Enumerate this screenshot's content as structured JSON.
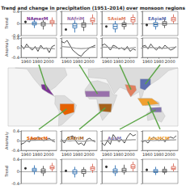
{
  "title": "Trend and change in precipitation (1951–2014) over monsoon regions",
  "chart_data": [
    {
      "type": "boxplot",
      "title": "NAmerM",
      "color": "#7b3294",
      "ylabel": "Trend",
      "tick_labels": "y",
      "categories": [
        null,
        null,
        null,
        null
      ],
      "ylim": [
        -0.4,
        0.4
      ],
      "yticks": [
        -0.4,
        0,
        0.4
      ],
      "series": [
        {
          "type": "scatter",
          "color": "#000000",
          "values": [
            0.05,
            null,
            null,
            null
          ]
        },
        {
          "type": "boxplot",
          "colors": [
            null,
            "#2166ac",
            "#444444",
            "#d6604d"
          ],
          "values": [
            null,
            [
              -0.15,
              -0.05,
              0.0,
              0.05,
              0.15
            ],
            [
              -0.2,
              -0.08,
              -0.02,
              0.04,
              0.12
            ],
            [
              -0.1,
              0.0,
              0.05,
              0.1,
              0.2
            ]
          ]
        }
      ]
    },
    {
      "type": "boxplot",
      "title": "NAfriM",
      "color": "#9970ab",
      "tick_labels": false,
      "categories": [
        null,
        null,
        null,
        null
      ],
      "ylim": [
        -0.4,
        0.4
      ],
      "yticks": [
        -0.4,
        0,
        0.4
      ],
      "series": [
        {
          "type": "scatter",
          "color": "#000000",
          "values": [
            -0.2,
            null,
            null,
            null
          ]
        },
        {
          "type": "boxplot",
          "colors": [
            null,
            "#2166ac",
            "#444444",
            "#d6604d"
          ],
          "values": [
            null,
            [
              -0.3,
              -0.15,
              -0.08,
              0.0,
              0.1
            ],
            [
              -0.25,
              -0.12,
              -0.05,
              0.02,
              0.12
            ],
            [
              -0.05,
              0.05,
              0.1,
              0.18,
              0.3
            ]
          ]
        }
      ]
    },
    {
      "type": "boxplot",
      "title": "SAsiaM",
      "color": "#e08060",
      "tick_labels": false,
      "categories": [
        null,
        null,
        null,
        null
      ],
      "ylim": [
        -0.4,
        0.4
      ],
      "yticks": [
        -0.4,
        0,
        0.4
      ],
      "series": [
        {
          "type": "scatter",
          "color": "#000000",
          "values": [
            -0.1,
            null,
            null,
            null
          ]
        },
        {
          "type": "boxplot",
          "colors": [
            null,
            "#2166ac",
            "#444444",
            "#d6604d"
          ],
          "values": [
            null,
            [
              -0.3,
              -0.18,
              -0.1,
              -0.02,
              0.08
            ],
            [
              -0.2,
              -0.1,
              -0.04,
              0.02,
              0.1
            ],
            [
              -0.05,
              0.05,
              0.12,
              0.2,
              0.3
            ]
          ]
        }
      ]
    },
    {
      "type": "boxplot",
      "title": "EAsiaM",
      "color": "#5e6fb0",
      "tick_labels": false,
      "categories": [
        null,
        null,
        null,
        null
      ],
      "ylim": [
        -0.4,
        0.4
      ],
      "yticks": [
        -0.4,
        0,
        0.4
      ],
      "series": [
        {
          "type": "scatter",
          "color": "#000000",
          "values": [
            -0.05,
            null,
            null,
            null
          ]
        },
        {
          "type": "boxplot",
          "colors": [
            null,
            "#2166ac",
            "#444444",
            "#d6604d"
          ],
          "values": [
            null,
            [
              -0.2,
              -0.1,
              -0.04,
              0.03,
              0.12
            ],
            [
              -0.15,
              -0.06,
              0.0,
              0.06,
              0.15
            ],
            [
              0.0,
              0.08,
              0.14,
              0.2,
              0.3
            ]
          ]
        }
      ]
    },
    {
      "type": "line",
      "ylabel": "Anomaly",
      "tick_labels": true,
      "x": [
        1951,
        1956,
        1961,
        1966,
        1971,
        1976,
        1981,
        1986,
        1991,
        1996,
        2001,
        2006,
        2011
      ],
      "xlim": [
        1951,
        2014
      ],
      "xticks": [
        1960,
        1980,
        2000
      ],
      "ylim": [
        -0.4,
        0.4
      ],
      "yticks": [
        -0.4,
        0,
        0.4
      ],
      "series": [
        {
          "color": "#000000",
          "values": [
            0.1,
            -0.05,
            0.15,
            0.0,
            -0.1,
            0.05,
            -0.15,
            0.1,
            -0.05,
            0.0,
            -0.2,
            0.05,
            0.1
          ]
        },
        {
          "color": "#999999",
          "values": [
            0.02,
            0.0,
            0.03,
            0.01,
            -0.02,
            0.0,
            -0.01,
            0.0,
            -0.03,
            -0.02,
            -0.04,
            -0.03,
            -0.05
          ]
        }
      ]
    },
    {
      "type": "line",
      "tick_labels": "x",
      "x": [
        1951,
        1956,
        1961,
        1966,
        1971,
        1976,
        1981,
        1986,
        1991,
        1996,
        2001,
        2006,
        2011
      ],
      "xlim": [
        1951,
        2014
      ],
      "xticks": [
        1960,
        1980,
        2000
      ],
      "ylim": [
        -0.4,
        0.4
      ],
      "yticks": [
        -0.4,
        0,
        0.4
      ],
      "series": [
        {
          "color": "#000000",
          "values": [
            0.25,
            0.2,
            0.3,
            0.1,
            -0.1,
            -0.2,
            -0.3,
            -0.35,
            -0.2,
            -0.1,
            0.0,
            0.05,
            0.1
          ]
        },
        {
          "color": "#999999",
          "values": [
            0.05,
            0.04,
            0.03,
            0.02,
            0.0,
            -0.02,
            -0.03,
            -0.04,
            -0.03,
            -0.02,
            0.0,
            0.01,
            0.02
          ]
        }
      ]
    },
    {
      "type": "line",
      "tick_labels": "x",
      "x": [
        1951,
        1956,
        1961,
        1966,
        1971,
        1976,
        1981,
        1986,
        1991,
        1996,
        2001,
        2006,
        2011
      ],
      "xlim": [
        1951,
        2014
      ],
      "xticks": [
        1960,
        1980,
        2000
      ],
      "ylim": [
        -0.4,
        0.4
      ],
      "yticks": [
        -0.4,
        0,
        0.4
      ],
      "series": [
        {
          "color": "#000000",
          "values": [
            0.1,
            0.15,
            0.05,
            -0.1,
            0.1,
            0.05,
            -0.05,
            0.0,
            -0.1,
            0.05,
            -0.15,
            -0.05,
            -0.1
          ]
        },
        {
          "color": "#999999",
          "values": [
            0.03,
            0.02,
            0.02,
            0.0,
            0.01,
            -0.01,
            -0.02,
            -0.02,
            -0.03,
            -0.03,
            -0.02,
            0.0,
            0.01
          ]
        }
      ]
    },
    {
      "type": "line",
      "tick_labels": "x",
      "x": [
        1951,
        1956,
        1961,
        1966,
        1971,
        1976,
        1981,
        1986,
        1991,
        1996,
        2001,
        2006,
        2011
      ],
      "xlim": [
        1951,
        2014
      ],
      "xticks": [
        1960,
        1980,
        2000
      ],
      "ylim": [
        -0.4,
        0.4
      ],
      "yticks": [
        -0.4,
        0,
        0.4
      ],
      "series": [
        {
          "color": "#000000",
          "values": [
            0.05,
            0.1,
            -0.05,
            0.15,
            0.0,
            -0.1,
            0.05,
            -0.05,
            0.1,
            0.0,
            -0.1,
            -0.05,
            0.05
          ]
        },
        {
          "color": "#999999",
          "values": [
            0.01,
            0.02,
            0.0,
            0.01,
            0.0,
            -0.01,
            -0.02,
            -0.01,
            -0.02,
            -0.01,
            0.0,
            0.01,
            0.02
          ]
        }
      ]
    },
    {
      "type": "line",
      "title": "SAmerM",
      "color": "#e66101",
      "ylabel": "Anomaly",
      "tick_labels": true,
      "x": [
        1951,
        1956,
        1961,
        1966,
        1971,
        1976,
        1981,
        1986,
        1991,
        1996,
        2001,
        2006,
        2011
      ],
      "xlim": [
        1951,
        2014
      ],
      "xticks": [
        1960,
        1980,
        2000
      ],
      "ylim": [
        -0.4,
        0.4
      ],
      "yticks": [
        -0.4,
        0,
        0.4
      ],
      "series": [
        {
          "color": "#000000",
          "values": [
            -0.15,
            -0.1,
            0.0,
            -0.05,
            0.1,
            0.05,
            0.15,
            0.1,
            0.0,
            0.05,
            0.1,
            0.0,
            -0.05
          ]
        },
        {
          "color": "#999999",
          "values": [
            -0.02,
            -0.01,
            0.0,
            0.0,
            0.01,
            0.01,
            0.02,
            0.02,
            0.01,
            0.02,
            0.03,
            0.03,
            0.04
          ]
        }
      ]
    },
    {
      "type": "line",
      "title": "SAfriM",
      "color": "#a6611a",
      "tick_labels": "x",
      "x": [
        1951,
        1956,
        1961,
        1966,
        1971,
        1976,
        1981,
        1986,
        1991,
        1996,
        2001,
        2006,
        2011
      ],
      "xlim": [
        1951,
        2014
      ],
      "xticks": [
        1960,
        1980,
        2000
      ],
      "ylim": [
        -0.4,
        0.4
      ],
      "yticks": [
        -0.4,
        0,
        0.4
      ],
      "series": [
        {
          "color": "#000000",
          "values": [
            0.05,
            -0.1,
            0.1,
            0.15,
            0.2,
            0.0,
            -0.15,
            -0.1,
            -0.2,
            0.05,
            0.1,
            0.0,
            -0.05
          ]
        },
        {
          "color": "#999999",
          "values": [
            0.0,
            0.01,
            0.0,
            -0.01,
            0.0,
            0.0,
            -0.01,
            -0.02,
            -0.02,
            -0.01,
            0.0,
            0.01,
            0.0
          ]
        }
      ]
    },
    {
      "type": "line",
      "title": "AusM",
      "color": "#8073ac",
      "tick_labels": "x",
      "x": [
        1951,
        1956,
        1961,
        1966,
        1971,
        1976,
        1981,
        1986,
        1991,
        1996,
        2001,
        2006,
        2011
      ],
      "xlim": [
        1951,
        2014
      ],
      "xticks": [
        1960,
        1980,
        2000
      ],
      "ylim": [
        -0.4,
        0.4
      ],
      "yticks": [
        -0.4,
        0,
        0.4
      ],
      "series": [
        {
          "color": "#000000",
          "values": [
            -0.1,
            -0.2,
            0.0,
            -0.15,
            0.25,
            0.1,
            -0.05,
            0.05,
            -0.1,
            0.15,
            0.3,
            0.2,
            0.25
          ]
        },
        {
          "color": "#999999",
          "values": [
            0.0,
            0.0,
            0.01,
            0.0,
            0.01,
            0.02,
            0.01,
            0.02,
            0.02,
            0.03,
            0.03,
            0.04,
            0.04
          ]
        }
      ]
    },
    {
      "type": "line",
      "title": "AusMCM",
      "color": "#f0a030",
      "tick_labels": "x",
      "x": [
        1951,
        1956,
        1961,
        1966,
        1971,
        1976,
        1981,
        1986,
        1991,
        1996,
        2001,
        2006,
        2011
      ],
      "xlim": [
        1951,
        2014
      ],
      "xticks": [
        1960,
        1980,
        2000
      ],
      "ylim": [
        -0.4,
        0.4
      ],
      "yticks": [
        -0.4,
        0,
        0.4
      ],
      "series": [
        {
          "color": "#000000",
          "values": [
            -0.05,
            0.0,
            -0.1,
            0.05,
            0.15,
            0.05,
            0.0,
            0.1,
            -0.05,
            0.1,
            0.15,
            0.1,
            0.2
          ]
        },
        {
          "color": "#999999",
          "values": [
            0.0,
            0.0,
            0.01,
            0.01,
            0.0,
            0.01,
            0.02,
            0.01,
            0.02,
            0.02,
            0.03,
            0.03,
            0.04
          ]
        }
      ]
    },
    {
      "type": "boxplot",
      "ylabel": "Trend",
      "tick_labels": "y",
      "categories": [
        null,
        null,
        null,
        null
      ],
      "ylim": [
        -0.4,
        0.4
      ],
      "yticks": [
        -0.4,
        0,
        0.4
      ],
      "series": [
        {
          "type": "scatter",
          "color": "#000000",
          "values": [
            0.1,
            null,
            null,
            null
          ]
        },
        {
          "type": "boxplot",
          "colors": [
            null,
            "#2166ac",
            "#444444",
            "#d6604d"
          ],
          "values": [
            null,
            [
              -0.1,
              0.0,
              0.05,
              0.1,
              0.2
            ],
            [
              -0.15,
              -0.05,
              0.02,
              0.08,
              0.18
            ],
            [
              0.0,
              0.08,
              0.12,
              0.18,
              0.28
            ]
          ]
        }
      ]
    },
    {
      "type": "boxplot",
      "tick_labels": false,
      "categories": [
        null,
        null,
        null,
        null
      ],
      "ylim": [
        -0.4,
        0.4
      ],
      "yticks": [
        -0.4,
        0,
        0.4
      ],
      "series": [
        {
          "type": "scatter",
          "color": "#000000",
          "values": [
            0.02,
            null,
            null,
            null
          ]
        },
        {
          "type": "boxplot",
          "colors": [
            null,
            "#2166ac",
            "#444444",
            "#d6604d"
          ],
          "values": [
            null,
            [
              -0.2,
              -0.08,
              -0.02,
              0.05,
              0.15
            ],
            [
              -0.18,
              -0.07,
              0.0,
              0.06,
              0.14
            ],
            [
              -0.05,
              0.04,
              0.1,
              0.15,
              0.25
            ]
          ]
        }
      ]
    },
    {
      "type": "boxplot",
      "tick_labels": false,
      "categories": [
        null,
        null,
        null,
        null
      ],
      "ylim": [
        -0.4,
        0.4
      ],
      "yticks": [
        -0.4,
        0,
        0.4
      ],
      "series": [
        {
          "type": "scatter",
          "color": "#000000",
          "values": [
            0.15,
            null,
            null,
            null
          ]
        },
        {
          "type": "boxplot",
          "colors": [
            null,
            "#2166ac",
            "#444444",
            "#d6604d"
          ],
          "values": [
            null,
            [
              -0.15,
              -0.05,
              0.02,
              0.08,
              0.2
            ],
            [
              -0.1,
              -0.02,
              0.04,
              0.1,
              0.22
            ],
            [
              0.0,
              0.1,
              0.15,
              0.22,
              0.32
            ]
          ]
        }
      ]
    },
    {
      "type": "boxplot",
      "tick_labels": false,
      "categories": [
        null,
        null,
        null,
        null
      ],
      "ylim": [
        -0.4,
        0.4
      ],
      "yticks": [
        -0.4,
        0,
        0.4
      ],
      "series": [
        {
          "type": "scatter",
          "color": "#000000",
          "values": [
            0.05,
            null,
            null,
            null
          ]
        },
        {
          "type": "boxplot",
          "colors": [
            null,
            "#2166ac",
            "#444444",
            "#d6604d"
          ],
          "values": [
            null,
            [
              -0.12,
              -0.04,
              0.01,
              0.06,
              0.15
            ],
            [
              -0.1,
              -0.03,
              0.02,
              0.07,
              0.16
            ],
            [
              0.0,
              0.06,
              0.1,
              0.16,
              0.26
            ]
          ]
        }
      ]
    }
  ]
}
